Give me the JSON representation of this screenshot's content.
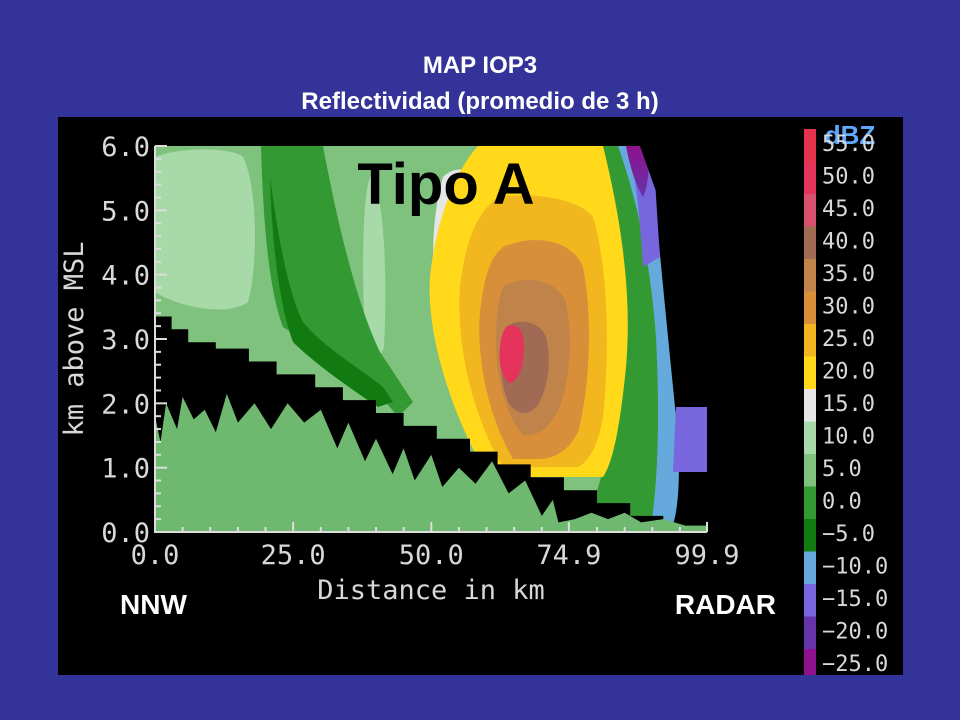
{
  "header": {
    "title": "MAP IOP3",
    "subtitle": "Reflectividad (promedio de 3 h)"
  },
  "colorbar": {
    "unit": "dBZ",
    "levels": [
      "55.0",
      "50.0",
      "45.0",
      "40.0",
      "35.0",
      "30.0",
      "25.0",
      "20.0",
      "15.0",
      "10.0",
      "5.0",
      "0.0",
      "−5.0",
      "−10.0",
      "−15.0",
      "−20.0",
      "−25.0"
    ],
    "colors": [
      "#e6334d",
      "#e6335c",
      "#d9506e",
      "#a06a55",
      "#c0844a",
      "#d98f3a",
      "#f2b71f",
      "#ffd91a",
      "#e6e6e6",
      "#a8d9a8",
      "#7ec27e",
      "#339933",
      "#117a11",
      "#66aadd",
      "#7766dd",
      "#6633aa",
      "#8e118e"
    ]
  },
  "annotations": {
    "type_label": "Tipo A",
    "left_label": "NNW",
    "right_label": "RADAR"
  },
  "chart_data": {
    "type": "heatmap",
    "xlabel": "Distance in km",
    "ylabel": "km above MSL",
    "xlim": [
      0.0,
      99.9
    ],
    "ylim": [
      0.0,
      6.0
    ],
    "x_ticks": [
      "0.0",
      "25.0",
      "50.0",
      "74.9",
      "99.9"
    ],
    "x_tick_values": [
      0.0,
      25.0,
      50.0,
      74.9,
      99.9
    ],
    "y_ticks": [
      "0.0",
      "1.0",
      "2.0",
      "3.0",
      "4.0",
      "5.0",
      "6.0"
    ],
    "y_tick_values": [
      0.0,
      1.0,
      2.0,
      3.0,
      4.0,
      5.0,
      6.0
    ],
    "terrain": [
      [
        0,
        1.8
      ],
      [
        1,
        1.4
      ],
      [
        2,
        2.0
      ],
      [
        4,
        1.6
      ],
      [
        5,
        2.1
      ],
      [
        7,
        1.75
      ],
      [
        9,
        1.9
      ],
      [
        11,
        1.55
      ],
      [
        13,
        2.15
      ],
      [
        15,
        1.7
      ],
      [
        18,
        2.0
      ],
      [
        21,
        1.6
      ],
      [
        24,
        2.0
      ],
      [
        27,
        1.7
      ],
      [
        30,
        1.9
      ],
      [
        33,
        1.3
      ],
      [
        35,
        1.7
      ],
      [
        38,
        1.1
      ],
      [
        40,
        1.45
      ],
      [
        43,
        0.9
      ],
      [
        45,
        1.3
      ],
      [
        47,
        0.8
      ],
      [
        50,
        1.2
      ],
      [
        52,
        0.7
      ],
      [
        55,
        1.0
      ],
      [
        58,
        0.75
      ],
      [
        61,
        1.1
      ],
      [
        64,
        0.6
      ],
      [
        67,
        0.8
      ],
      [
        70,
        0.25
      ],
      [
        72,
        0.5
      ],
      [
        73,
        0.15
      ],
      [
        76,
        0.2
      ],
      [
        79,
        0.3
      ],
      [
        82,
        0.2
      ],
      [
        85,
        0.3
      ],
      [
        88,
        0.15
      ],
      [
        92,
        0.2
      ],
      [
        96,
        0.1
      ],
      [
        100,
        0.1
      ]
    ],
    "blockage": [
      [
        0,
        3.35
      ],
      [
        3,
        3.35
      ],
      [
        3,
        3.15
      ],
      [
        6,
        3.15
      ],
      [
        6,
        2.95
      ],
      [
        11,
        2.95
      ],
      [
        11,
        2.85
      ],
      [
        17,
        2.85
      ],
      [
        17,
        2.65
      ],
      [
        22,
        2.65
      ],
      [
        22,
        2.45
      ],
      [
        29,
        2.45
      ],
      [
        29,
        2.25
      ],
      [
        34,
        2.25
      ],
      [
        34,
        2.05
      ],
      [
        40,
        2.05
      ],
      [
        40,
        1.85
      ],
      [
        45,
        1.85
      ],
      [
        45,
        1.65
      ],
      [
        51,
        1.65
      ],
      [
        51,
        1.45
      ],
      [
        57,
        1.45
      ],
      [
        57,
        1.25
      ],
      [
        62,
        1.25
      ],
      [
        62,
        1.05
      ],
      [
        68,
        1.05
      ],
      [
        68,
        0.85
      ],
      [
        74,
        0.85
      ],
      [
        74,
        0.65
      ],
      [
        80,
        0.65
      ],
      [
        80,
        0.45
      ],
      [
        86,
        0.45
      ],
      [
        86,
        0.25
      ],
      [
        92,
        0.25
      ],
      [
        92,
        0.05
      ],
      [
        100,
        0.05
      ]
    ]
  }
}
